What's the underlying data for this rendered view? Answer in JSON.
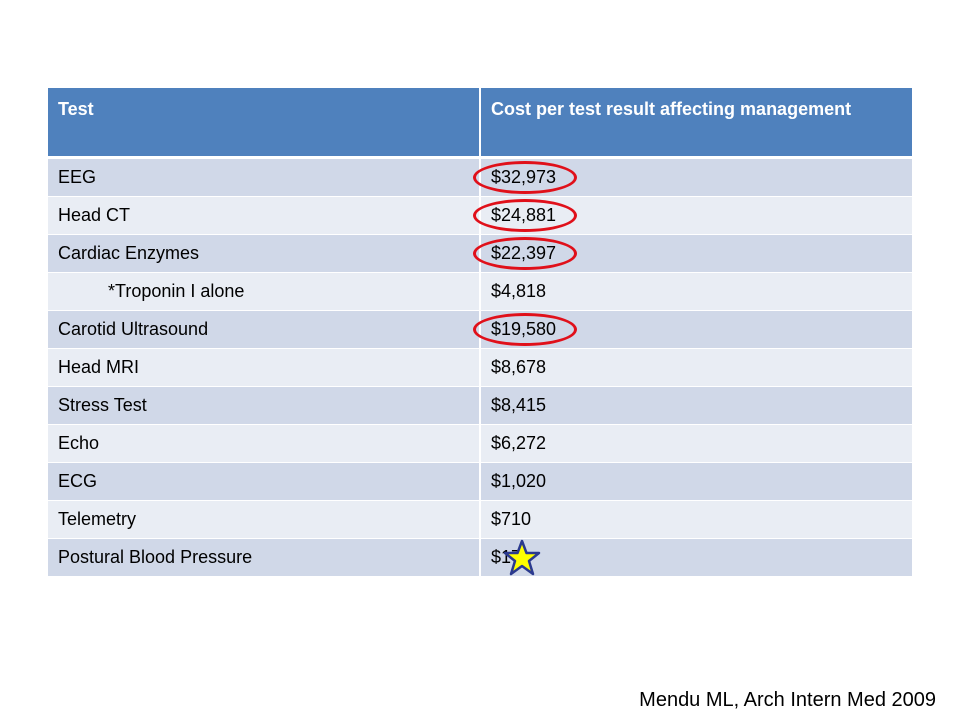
{
  "table": {
    "headers": [
      "Test",
      "Cost per test result affecting management"
    ],
    "rows": [
      {
        "test": "EEG",
        "cost": "$32,973",
        "circled": true
      },
      {
        "test": "Head CT",
        "cost": "$24,881",
        "circled": true
      },
      {
        "test": "Cardiac Enzymes",
        "cost": "$22,397",
        "circled": true
      },
      {
        "test": "*Troponin I alone",
        "cost": "$4,818",
        "indented": true
      },
      {
        "test": "Carotid Ultrasound",
        "cost": "$19,580",
        "circled": true
      },
      {
        "test": "Head MRI",
        "cost": "$8,678"
      },
      {
        "test": "Stress Test",
        "cost": "$8,415"
      },
      {
        "test": "Echo",
        "cost": "$6,272"
      },
      {
        "test": "ECG",
        "cost": "$1,020"
      },
      {
        "test": "Telemetry",
        "cost": "$710"
      },
      {
        "test": "Postural Blood Pressure",
        "cost": "$17",
        "starred": true
      }
    ]
  },
  "citation": "Mendu ML, Arch Intern Med 2009",
  "colors": {
    "header_bg": "#4f81bd",
    "row_odd": "#d0d8e8",
    "row_even": "#e9edf4",
    "circle": "#e0101a",
    "star_fill": "#ffff00",
    "star_stroke": "#2b3a8f"
  },
  "icons": {
    "circle": "red-circle-highlight",
    "star": "star-icon"
  }
}
